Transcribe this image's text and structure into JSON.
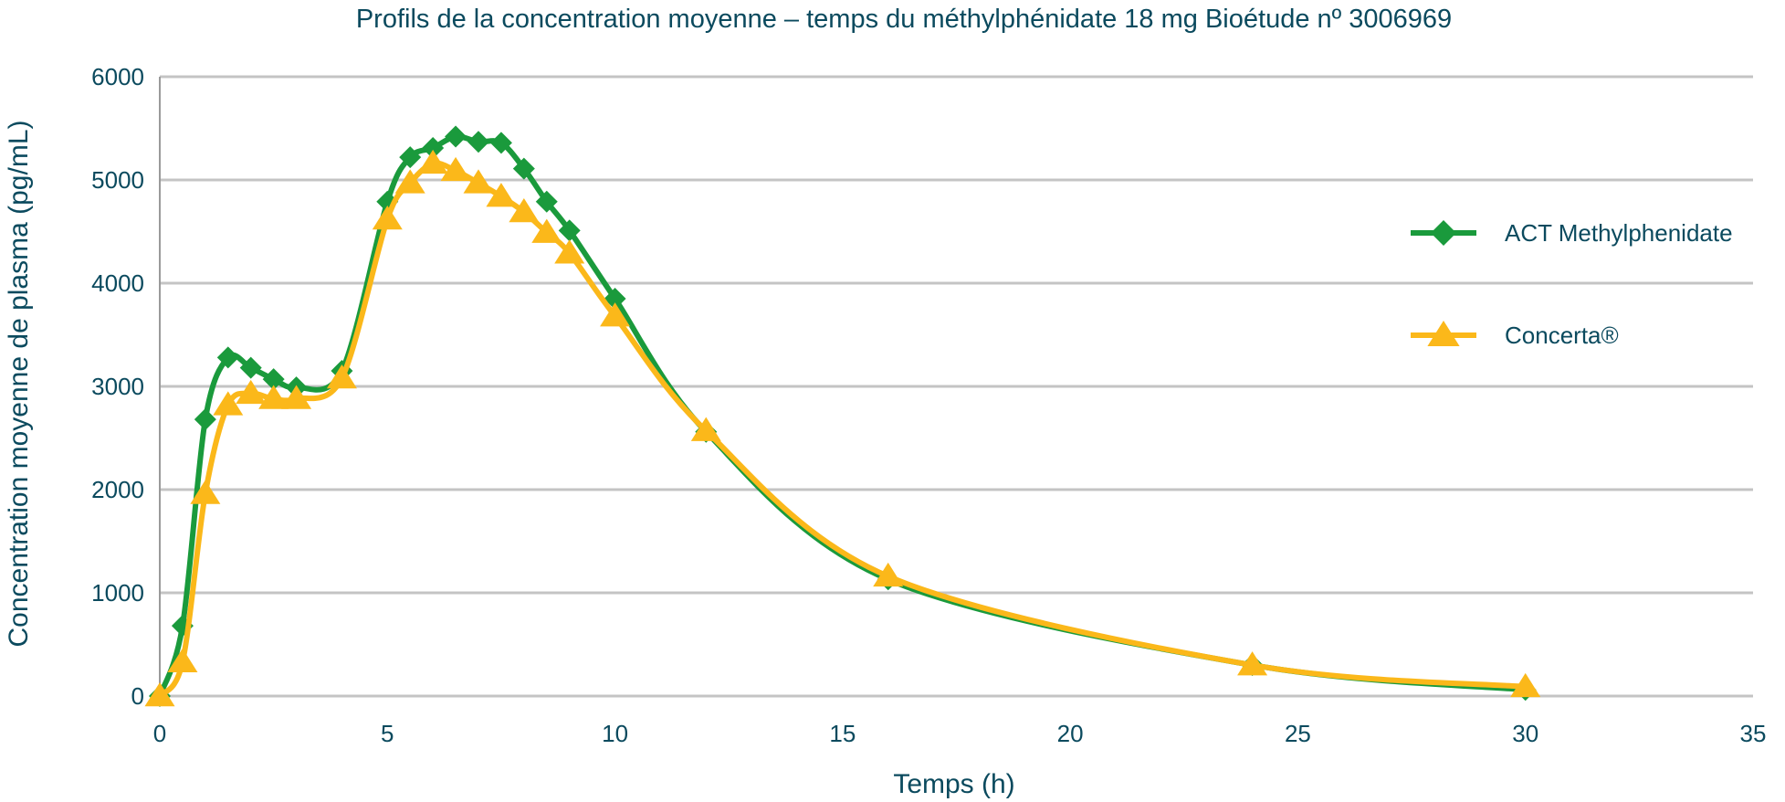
{
  "chart_data": {
    "type": "line",
    "title": "Profils de la concentration moyenne – temps du méthylphénidate 18 mg Bioétude nº 3006969",
    "xlabel": "Temps (h)",
    "ylabel": "Concentration moyenne de plasma (pg/mL)",
    "xlim": [
      0,
      35
    ],
    "ylim": [
      0,
      6000
    ],
    "xticks": [
      0,
      5,
      10,
      15,
      20,
      25,
      30,
      35
    ],
    "yticks": [
      0,
      1000,
      2000,
      3000,
      4000,
      5000,
      6000
    ],
    "grid": "horizontal",
    "legend_position": "right",
    "series": [
      {
        "name": "ACT Methylphenidate",
        "color": "#1a9a3c",
        "marker": "diamond",
        "x": [
          0,
          0.5,
          1,
          1.5,
          2,
          2.5,
          3,
          4,
          5,
          5.5,
          6,
          6.5,
          7,
          7.5,
          8,
          8.5,
          9,
          10,
          12,
          16,
          24,
          30
        ],
        "y": [
          0,
          680,
          2680,
          3280,
          3180,
          3070,
          2990,
          3150,
          4790,
          5220,
          5310,
          5420,
          5370,
          5360,
          5110,
          4790,
          4510,
          3850,
          2560,
          1130,
          300,
          60
        ]
      },
      {
        "name": "Concerta®",
        "color": "#fbb81a",
        "marker": "triangle",
        "x": [
          0,
          0.5,
          1,
          1.5,
          2,
          2.5,
          3,
          4,
          5,
          5.5,
          6,
          6.5,
          7,
          7.5,
          8,
          8.5,
          9,
          10,
          12,
          16,
          24,
          30
        ],
        "y": [
          0,
          330,
          1960,
          2820,
          2930,
          2880,
          2880,
          3080,
          4620,
          4970,
          5160,
          5090,
          4970,
          4840,
          4690,
          4490,
          4290,
          3680,
          2570,
          1160,
          300,
          90
        ]
      }
    ]
  }
}
